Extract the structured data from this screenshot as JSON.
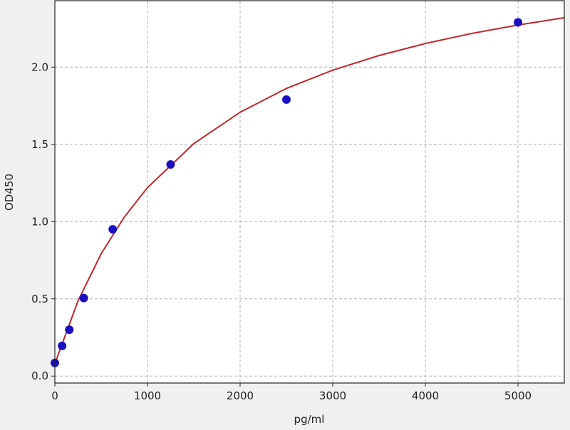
{
  "chart_data": {
    "type": "scatter",
    "title": "",
    "xlabel": "pg/ml",
    "ylabel": "OD450",
    "xlim": [
      0,
      5500
    ],
    "ylim": [
      -0.045,
      2.43
    ],
    "grid": true,
    "xticks": [
      0,
      1000,
      2000,
      3000,
      4000,
      5000
    ],
    "yticks": [
      "0.0",
      "0.5",
      "1.0",
      "1.5",
      "2.0"
    ],
    "points": {
      "color": "#1a10c0",
      "x": [
        0,
        78,
        156,
        312,
        625,
        1250,
        2500,
        5000
      ],
      "y": [
        0.085,
        0.195,
        0.3,
        0.505,
        0.95,
        1.37,
        1.79,
        2.29
      ]
    },
    "fit_curve": {
      "color": "#c0282c",
      "x": [
        0,
        250,
        500,
        750,
        1000,
        1500,
        2000,
        2500,
        3000,
        3500,
        4000,
        4500,
        5000,
        5500
      ],
      "y": [
        0.08,
        0.487,
        0.792,
        1.03,
        1.22,
        1.505,
        1.708,
        1.862,
        1.98,
        2.075,
        2.153,
        2.218,
        2.273,
        2.32
      ]
    }
  }
}
